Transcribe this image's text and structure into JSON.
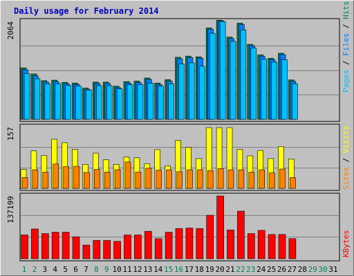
{
  "title": "Daily usage for February 2014",
  "colors": {
    "hits": "#00805c",
    "files": "#0080ff",
    "pages": "#00c0ff",
    "visits": "#ffff00",
    "sites": "#ff8000",
    "kbytes": "#ff0000",
    "weekday": "#000000",
    "weekend": "#00805c",
    "plot_bg": "#c0c0c0",
    "grid": "#808080"
  },
  "chart_data": [
    {
      "type": "bar",
      "panel": "hits-files-pages",
      "days": [
        "1",
        "2",
        "3",
        "4",
        "5",
        "6",
        "7",
        "8",
        "9",
        "10",
        "11",
        "12",
        "13",
        "14",
        "15",
        "16",
        "17",
        "18",
        "19",
        "20",
        "21",
        "22",
        "23",
        "24",
        "25",
        "26",
        "27",
        "28",
        "29",
        "30",
        "31"
      ],
      "weekend_days": [
        "1",
        "2",
        "8",
        "9",
        "15",
        "16",
        "22",
        "23",
        "29",
        "30"
      ],
      "ymax_label": "2064",
      "ylim": [
        0,
        2064
      ],
      "legend": [
        "Hits",
        "Files",
        "Pages"
      ],
      "series": [
        {
          "name": "Hits",
          "values": [
            1070,
            945,
            805,
            815,
            770,
            755,
            650,
            775,
            775,
            690,
            785,
            795,
            860,
            755,
            825,
            1290,
            1315,
            1300,
            1900,
            2060,
            1710,
            2000,
            1560,
            1340,
            1270,
            1375,
            820,
            0,
            0,
            0,
            0
          ]
        },
        {
          "name": "Files",
          "values": [
            1030,
            905,
            775,
            785,
            740,
            725,
            630,
            745,
            745,
            660,
            755,
            765,
            830,
            725,
            795,
            1260,
            1285,
            1270,
            1870,
            2050,
            1680,
            1970,
            1530,
            1310,
            1240,
            1345,
            790,
            0,
            0,
            0,
            0
          ]
        },
        {
          "name": "Pages",
          "values": [
            950,
            845,
            735,
            740,
            705,
            690,
            610,
            700,
            700,
            635,
            720,
            725,
            750,
            690,
            740,
            1150,
            1175,
            1105,
            1790,
            2030,
            1620,
            1860,
            1480,
            1250,
            1190,
            1240,
            740,
            0,
            0,
            0,
            0
          ]
        }
      ]
    },
    {
      "type": "bar",
      "panel": "visits-sites",
      "ymax_label": "157",
      "ylim": [
        0,
        157
      ],
      "legend": [
        "Visits",
        "Sites"
      ],
      "series": [
        {
          "name": "Visits",
          "values": [
            49,
            97,
            85,
            127,
            118,
            101,
            62,
            91,
            74,
            62,
            81,
            79,
            64,
            100,
            58,
            124,
            106,
            77,
            157,
            157,
            157,
            101,
            84,
            98,
            77,
            108,
            76,
            0,
            0,
            0,
            0
          ]
        },
        {
          "name": "Sites",
          "values": [
            28,
            48,
            42,
            63,
            56,
            57,
            41,
            49,
            42,
            48,
            68,
            42,
            52,
            47,
            48,
            43,
            48,
            48,
            46,
            51,
            48,
            48,
            42,
            48,
            40,
            50,
            28,
            0,
            0,
            0,
            0
          ]
        }
      ]
    },
    {
      "type": "bar",
      "panel": "kbytes",
      "ymax_label": "137199",
      "ylim": [
        0,
        137199
      ],
      "legend": [
        "KBytes"
      ],
      "series": [
        {
          "name": "KBytes",
          "values": [
            52000,
            65000,
            55000,
            58000,
            58000,
            48000,
            30000,
            40000,
            40000,
            38000,
            52000,
            52000,
            60000,
            44000,
            58000,
            66000,
            67000,
            66000,
            95000,
            137199,
            63000,
            104000,
            55000,
            62000,
            53000,
            53000,
            44000,
            0,
            0,
            0,
            0
          ]
        }
      ]
    }
  ]
}
